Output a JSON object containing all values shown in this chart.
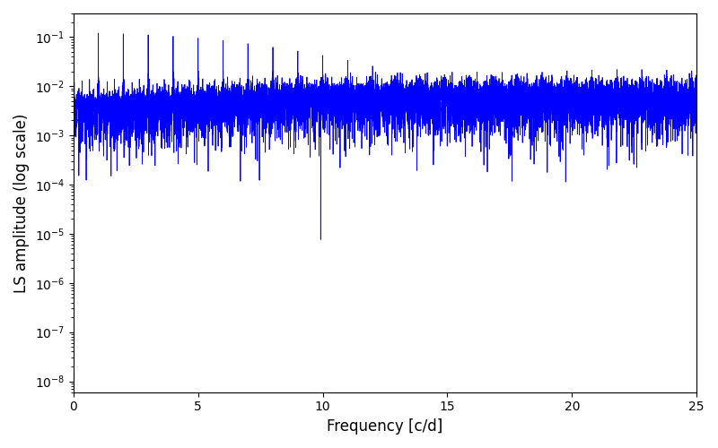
{
  "xlabel": "Frequency [c/d]",
  "ylabel": "LS amplitude (log scale)",
  "line_color": "#0000ff",
  "line_width": 0.6,
  "xlim": [
    0,
    25
  ],
  "ylim_low": 6e-09,
  "ylim_high": 0.3,
  "yscale": "log",
  "figsize": [
    8.0,
    5.0
  ],
  "dpi": 100,
  "bg": "#ffffff",
  "seed": 7,
  "n_freq": 12000,
  "freq_max": 25.0,
  "n_obs": 1000,
  "t_span": 1000.0
}
